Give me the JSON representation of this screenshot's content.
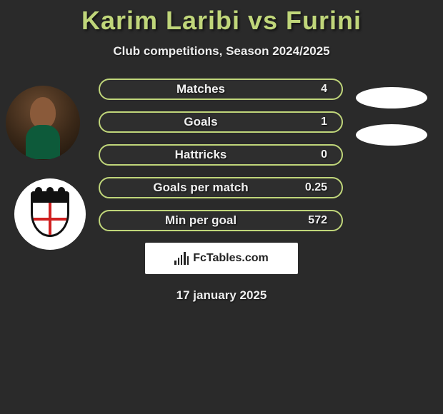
{
  "title": "Karim Laribi vs Furini",
  "subtitle": "Club competitions, Season 2024/2025",
  "colors": {
    "background": "#2a2a2a",
    "accent": "#c0d67a",
    "pill": "#ffffff",
    "text": "#f0f0f0"
  },
  "left_player": {
    "name": "Karim Laribi",
    "avatar_kind": "photo"
  },
  "left_club": {
    "shield_colors": {
      "border": "#111111",
      "cross": "#d02020",
      "bg": "#ffffff"
    }
  },
  "stats": [
    {
      "label": "Matches",
      "value": "4"
    },
    {
      "label": "Goals",
      "value": "1"
    },
    {
      "label": "Hattricks",
      "value": "0"
    },
    {
      "label": "Goals per match",
      "value": "0.25"
    },
    {
      "label": "Min per goal",
      "value": "572"
    }
  ],
  "right_pills_count": 2,
  "footer": {
    "brand": "FcTables.com",
    "bar_heights": [
      6,
      10,
      14,
      18,
      12
    ]
  },
  "date": "17 january 2025"
}
